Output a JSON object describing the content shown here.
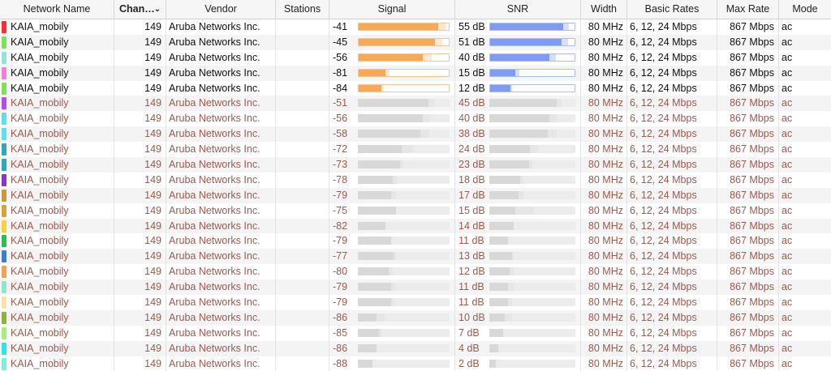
{
  "columns": {
    "network_name": "Network Name",
    "channel": "Chan…",
    "vendor": "Vendor",
    "stations": "Stations",
    "signal": "Signal",
    "snr": "SNR",
    "width": "Width",
    "basic_rates": "Basic Rates",
    "max_rate": "Max Rate",
    "mode": "Mode"
  },
  "colors": {
    "signal_active": "#f6aa57",
    "signal_active_border": "#f2c594",
    "snr_active": "#7f9cf5",
    "snr_active_border": "#a9bdf5",
    "inactive_bar": "#d8d8d8",
    "inactive_bar_light": "#e6e6e6",
    "inactive_text": "#9e5a4e"
  },
  "rows": [
    {
      "color": "#ff2d2d",
      "name": "KAIA_mobily",
      "channel": "149",
      "vendor": "Aruba Networks Inc.",
      "stations": "",
      "signal": "-41",
      "signal_level": 0.88,
      "signal_ext": 0.08,
      "snr": "55 dB",
      "snr_level": 0.87,
      "snr_ext": 0.06,
      "width": "80 MHz",
      "basic_rates": "6, 12, 24 Mbps",
      "max_rate": "867 Mbps",
      "mode": "ac",
      "active": true
    },
    {
      "color": "#7fe05a",
      "name": "KAIA_mobily",
      "channel": "149",
      "vendor": "Aruba Networks Inc.",
      "stations": "",
      "signal": "-45",
      "signal_level": 0.85,
      "signal_ext": 0.08,
      "snr": "51 dB",
      "snr_level": 0.85,
      "snr_ext": 0.07,
      "width": "80 MHz",
      "basic_rates": "6, 12, 24 Mbps",
      "max_rate": "867 Mbps",
      "mode": "ac",
      "active": true
    },
    {
      "color": "#8fe6e0",
      "name": "KAIA_mobily",
      "channel": "149",
      "vendor": "Aruba Networks Inc.",
      "stations": "",
      "signal": "-56",
      "signal_level": 0.71,
      "signal_ext": 0.1,
      "snr": "40 dB",
      "snr_level": 0.7,
      "snr_ext": 0.08,
      "width": "80 MHz",
      "basic_rates": "6, 12, 24 Mbps",
      "max_rate": "867 Mbps",
      "mode": "ac",
      "active": true
    },
    {
      "color": "#f77fd3",
      "name": "KAIA_mobily",
      "channel": "149",
      "vendor": "Aruba Networks Inc.",
      "stations": "",
      "signal": "-81",
      "signal_level": 0.3,
      "signal_ext": 0.04,
      "snr": "15 dB",
      "snr_level": 0.3,
      "snr_ext": 0.05,
      "width": "80 MHz",
      "basic_rates": "6, 12, 24 Mbps",
      "max_rate": "867 Mbps",
      "mode": "ac",
      "active": true
    },
    {
      "color": "#7fe05a",
      "name": "KAIA_mobily",
      "channel": "149",
      "vendor": "Aruba Networks Inc.",
      "stations": "",
      "signal": "-84",
      "signal_level": 0.25,
      "signal_ext": 0.03,
      "snr": "12 dB",
      "snr_level": 0.24,
      "snr_ext": 0.02,
      "width": "80 MHz",
      "basic_rates": "6, 12, 24 Mbps",
      "max_rate": "867 Mbps",
      "mode": "ac",
      "active": true
    },
    {
      "color": "#b44df0",
      "name": "KAIA_mobily",
      "channel": "149",
      "vendor": "Aruba Networks Inc.",
      "stations": "",
      "signal": "-51",
      "signal_level": 0.77,
      "signal_ext": 0.07,
      "snr": "45 dB",
      "snr_level": 0.78,
      "snr_ext": 0.06,
      "width": "80 MHz",
      "basic_rates": "6, 12, 24 Mbps",
      "max_rate": "867 Mbps",
      "mode": "ac",
      "active": false
    },
    {
      "color": "#5fe0e8",
      "name": "KAIA_mobily",
      "channel": "149",
      "vendor": "Aruba Networks Inc.",
      "stations": "",
      "signal": "-56",
      "signal_level": 0.71,
      "signal_ext": 0.08,
      "snr": "40 dB",
      "snr_level": 0.7,
      "snr_ext": 0.08,
      "width": "80 MHz",
      "basic_rates": "6, 12, 24 Mbps",
      "max_rate": "867 Mbps",
      "mode": "ac",
      "active": false
    },
    {
      "color": "#5fe0e8",
      "name": "KAIA_mobily",
      "channel": "149",
      "vendor": "Aruba Networks Inc.",
      "stations": "",
      "signal": "-58",
      "signal_level": 0.68,
      "signal_ext": 0.1,
      "snr": "38 dB",
      "snr_level": 0.68,
      "snr_ext": 0.1,
      "width": "80 MHz",
      "basic_rates": "6, 12, 24 Mbps",
      "max_rate": "867 Mbps",
      "mode": "ac",
      "active": false
    },
    {
      "color": "#2ea9b2",
      "name": "KAIA_mobily",
      "channel": "149",
      "vendor": "Aruba Networks Inc.",
      "stations": "",
      "signal": "-72",
      "signal_level": 0.48,
      "signal_ext": 0.12,
      "snr": "24 dB",
      "snr_level": 0.47,
      "snr_ext": 0.1,
      "width": "80 MHz",
      "basic_rates": "6, 12, 24 Mbps",
      "max_rate": "867 Mbps",
      "mode": "ac",
      "active": false
    },
    {
      "color": "#2ea9b2",
      "name": "KAIA_mobily",
      "channel": "149",
      "vendor": "Aruba Networks Inc.",
      "stations": "",
      "signal": "-73",
      "signal_level": 0.46,
      "signal_ext": 0.04,
      "snr": "23 dB",
      "snr_level": 0.46,
      "snr_ext": 0.04,
      "width": "80 MHz",
      "basic_rates": "6, 12, 24 Mbps",
      "max_rate": "867 Mbps",
      "mode": "ac",
      "active": false
    },
    {
      "color": "#8a37c9",
      "name": "KAIA_mobily",
      "channel": "149",
      "vendor": "Aruba Networks Inc.",
      "stations": "",
      "signal": "-78",
      "signal_level": 0.38,
      "signal_ext": 0.05,
      "snr": "18 dB",
      "snr_level": 0.36,
      "snr_ext": 0.04,
      "width": "80 MHz",
      "basic_rates": "6, 12, 24 Mbps",
      "max_rate": "867 Mbps",
      "mode": "ac",
      "active": false
    },
    {
      "color": "#c99a35",
      "name": "KAIA_mobily",
      "channel": "149",
      "vendor": "Aruba Networks Inc.",
      "stations": "",
      "signal": "-79",
      "signal_level": 0.36,
      "signal_ext": 0.06,
      "snr": "17 dB",
      "snr_level": 0.34,
      "snr_ext": 0.06,
      "width": "80 MHz",
      "basic_rates": "6, 12, 24 Mbps",
      "max_rate": "867 Mbps",
      "mode": "ac",
      "active": false
    },
    {
      "color": "#d8a43a",
      "name": "KAIA_mobily",
      "channel": "149",
      "vendor": "Aruba Networks Inc.",
      "stations": "",
      "signal": "-75",
      "signal_level": 0.42,
      "signal_ext": 0.0,
      "snr": "15 dB",
      "snr_level": 0.3,
      "snr_ext": 0.22,
      "width": "80 MHz",
      "basic_rates": "6, 12, 24 Mbps",
      "max_rate": "867 Mbps",
      "mode": "ac",
      "active": false
    },
    {
      "color": "#f5d33a",
      "name": "KAIA_mobily",
      "channel": "149",
      "vendor": "Aruba Networks Inc.",
      "stations": "",
      "signal": "-82",
      "signal_level": 0.3,
      "signal_ext": 0.0,
      "snr": "14 dB",
      "snr_level": 0.28,
      "snr_ext": 0.0,
      "width": "80 MHz",
      "basic_rates": "6, 12, 24 Mbps",
      "max_rate": "867 Mbps",
      "mode": "ac",
      "active": false
    },
    {
      "color": "#2fc052",
      "name": "KAIA_mobily",
      "channel": "149",
      "vendor": "Aruba Networks Inc.",
      "stations": "",
      "signal": "-79",
      "signal_level": 0.36,
      "signal_ext": 0.0,
      "snr": "11 dB",
      "snr_level": 0.22,
      "snr_ext": 0.0,
      "width": "80 MHz",
      "basic_rates": "6, 12, 24 Mbps",
      "max_rate": "867 Mbps",
      "mode": "ac",
      "active": false
    },
    {
      "color": "#3a7fd0",
      "name": "KAIA_mobily",
      "channel": "149",
      "vendor": "Aruba Networks Inc.",
      "stations": "",
      "signal": "-77",
      "signal_level": 0.39,
      "signal_ext": 0.03,
      "snr": "13 dB",
      "snr_level": 0.26,
      "snr_ext": 0.02,
      "width": "80 MHz",
      "basic_rates": "6, 12, 24 Mbps",
      "max_rate": "867 Mbps",
      "mode": "ac",
      "active": false
    },
    {
      "color": "#f5a05a",
      "name": "KAIA_mobily",
      "channel": "149",
      "vendor": "Aruba Networks Inc.",
      "stations": "",
      "signal": "-80",
      "signal_level": 0.34,
      "signal_ext": 0.04,
      "snr": "12 dB",
      "snr_level": 0.24,
      "snr_ext": 0.04,
      "width": "80 MHz",
      "basic_rates": "6, 12, 24 Mbps",
      "max_rate": "867 Mbps",
      "mode": "ac",
      "active": false
    },
    {
      "color": "#8ee8c8",
      "name": "KAIA_mobily",
      "channel": "149",
      "vendor": "Aruba Networks Inc.",
      "stations": "",
      "signal": "-79",
      "signal_level": 0.36,
      "signal_ext": 0.05,
      "snr": "11 dB",
      "snr_level": 0.22,
      "snr_ext": 0.06,
      "width": "80 MHz",
      "basic_rates": "6, 12, 24 Mbps",
      "max_rate": "867 Mbps",
      "mode": "ac",
      "active": false
    },
    {
      "color": "#f9e2a8",
      "name": "KAIA_mobily",
      "channel": "149",
      "vendor": "Aruba Networks Inc.",
      "stations": "",
      "signal": "-79",
      "signal_level": 0.36,
      "signal_ext": 0.04,
      "snr": "11 dB",
      "snr_level": 0.22,
      "snr_ext": 0.04,
      "width": "80 MHz",
      "basic_rates": "6, 12, 24 Mbps",
      "max_rate": "867 Mbps",
      "mode": "ac",
      "active": false
    },
    {
      "color": "#8fb33a",
      "name": "KAIA_mobily",
      "channel": "149",
      "vendor": "Aruba Networks Inc.",
      "stations": "",
      "signal": "-86",
      "signal_level": 0.2,
      "signal_ext": 0.1,
      "snr": "10 dB",
      "snr_level": 0.18,
      "snr_ext": 0.08,
      "width": "80 MHz",
      "basic_rates": "6, 12, 24 Mbps",
      "max_rate": "867 Mbps",
      "mode": "ac",
      "active": false
    },
    {
      "color": "#a8ee7a",
      "name": "KAIA_mobily",
      "channel": "149",
      "vendor": "Aruba Networks Inc.",
      "stations": "",
      "signal": "-85",
      "signal_level": 0.23,
      "signal_ext": 0.03,
      "snr": "7 dB",
      "snr_level": 0.16,
      "snr_ext": 0.0,
      "width": "80 MHz",
      "basic_rates": "6, 12, 24 Mbps",
      "max_rate": "867 Mbps",
      "mode": "ac",
      "active": false
    },
    {
      "color": "#29e8e8",
      "name": "KAIA_mobily",
      "channel": "149",
      "vendor": "Aruba Networks Inc.",
      "stations": "",
      "signal": "-86",
      "signal_level": 0.2,
      "signal_ext": 0.0,
      "snr": "4 dB",
      "snr_level": 0.1,
      "snr_ext": 0.0,
      "width": "80 MHz",
      "basic_rates": "6, 12, 24 Mbps",
      "max_rate": "867 Mbps",
      "mode": "ac",
      "active": false
    },
    {
      "color": "#7ef0d8",
      "name": "KAIA_mobily",
      "channel": "149",
      "vendor": "Aruba Networks Inc.",
      "stations": "",
      "signal": "-88",
      "signal_level": 0.16,
      "signal_ext": 0.0,
      "snr": "2 dB",
      "snr_level": 0.08,
      "snr_ext": 0.0,
      "width": "80 MHz",
      "basic_rates": "6, 12, 24 Mbps",
      "max_rate": "867 Mbps",
      "mode": "ac",
      "active": false
    }
  ]
}
